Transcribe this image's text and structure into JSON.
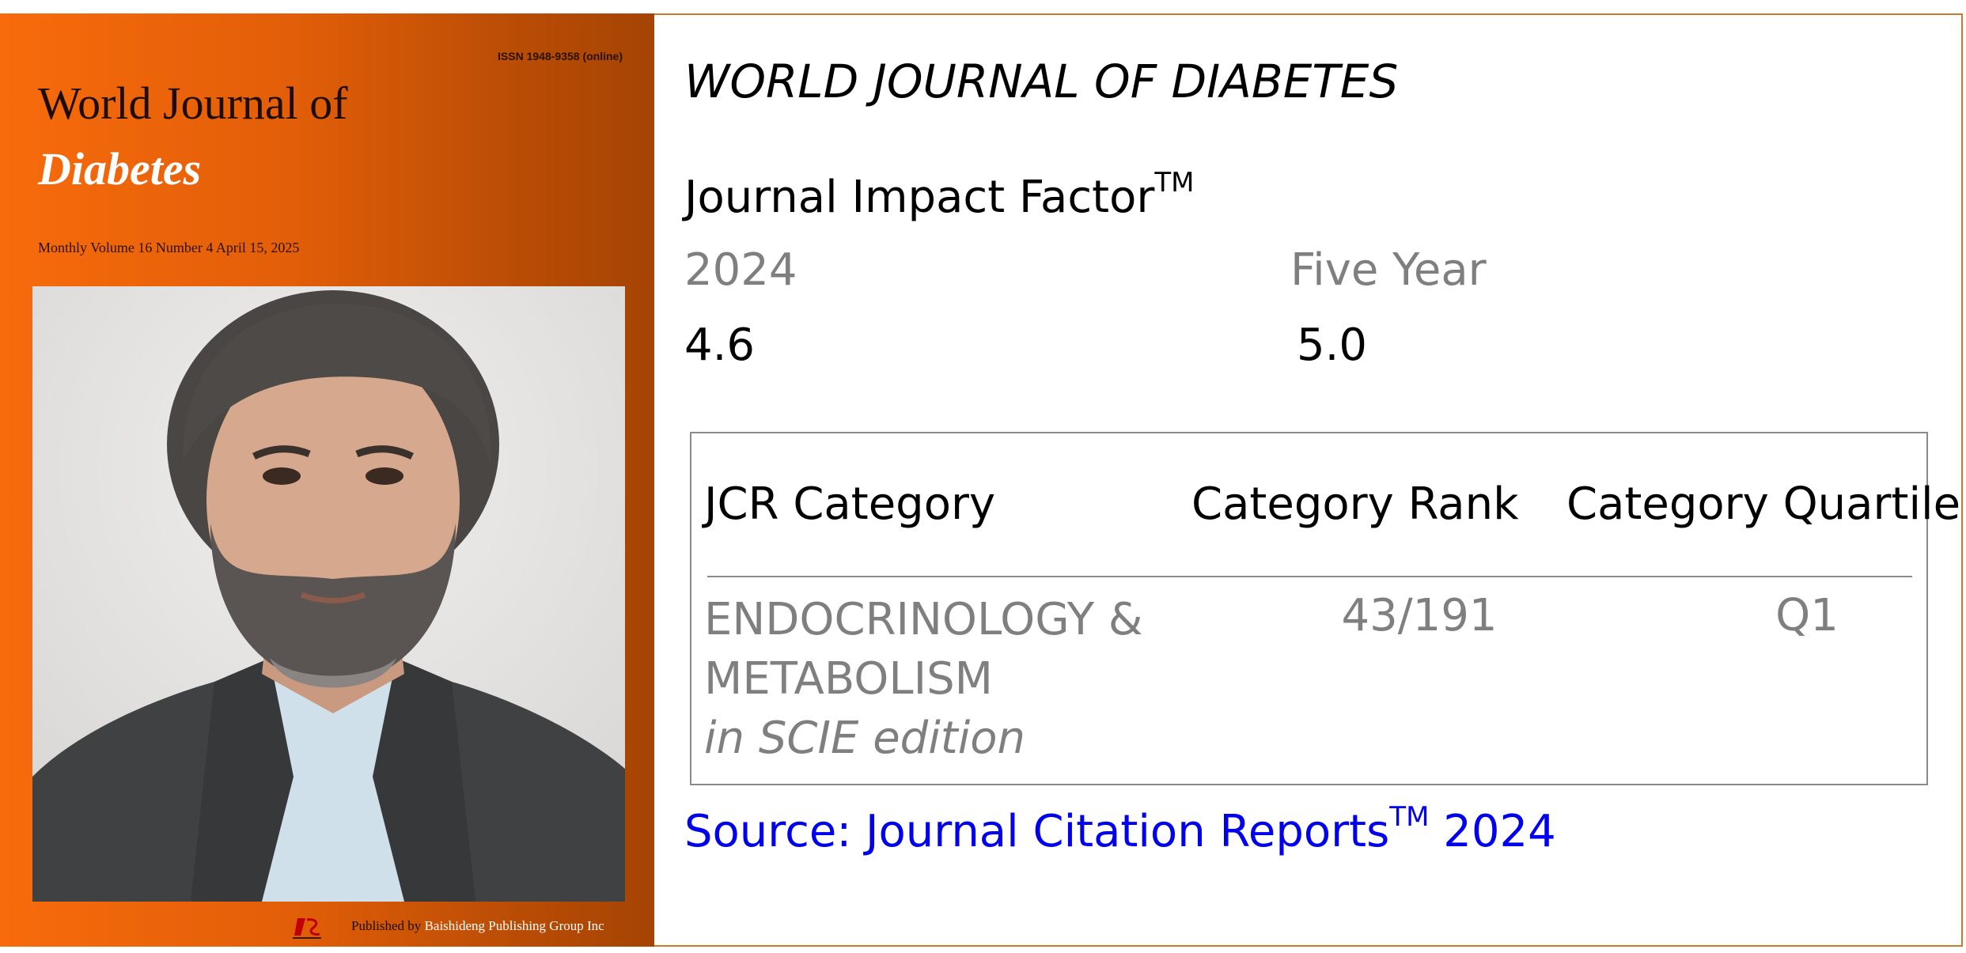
{
  "cover": {
    "issn": "ISSN 1948-9358 (online)",
    "title_line1": "World Journal of",
    "title_line2": "Diabetes",
    "issue": "Monthly Volume 16 Number 4 April 15, 2025",
    "publisher_prefix": "Published by",
    "publisher_name": "Baishideng Publishing Group Inc",
    "background_color": "#f76b0c"
  },
  "panel": {
    "journal_title": "WORLD JOURNAL OF DIABETES",
    "jif_label": "Journal Impact Factor",
    "jif_tm": "TM",
    "year_label": "2024",
    "five_year_label": "Five Year",
    "year_value": "4.6",
    "five_year_value": "5.0",
    "border_color": "#c97a2a"
  },
  "jcr_table": {
    "headers": [
      "JCR Category",
      "Category Rank",
      "Category Quartile"
    ],
    "row": {
      "category_line1": "ENDOCRINOLOGY &",
      "category_line2": "METABOLISM",
      "edition": "in SCIE edition",
      "rank": "43/191",
      "quartile": "Q1"
    }
  },
  "source": {
    "prefix": "Source: Journal Citation Reports",
    "tm": "TM",
    "year": " 2024",
    "color": "#0000ee"
  }
}
